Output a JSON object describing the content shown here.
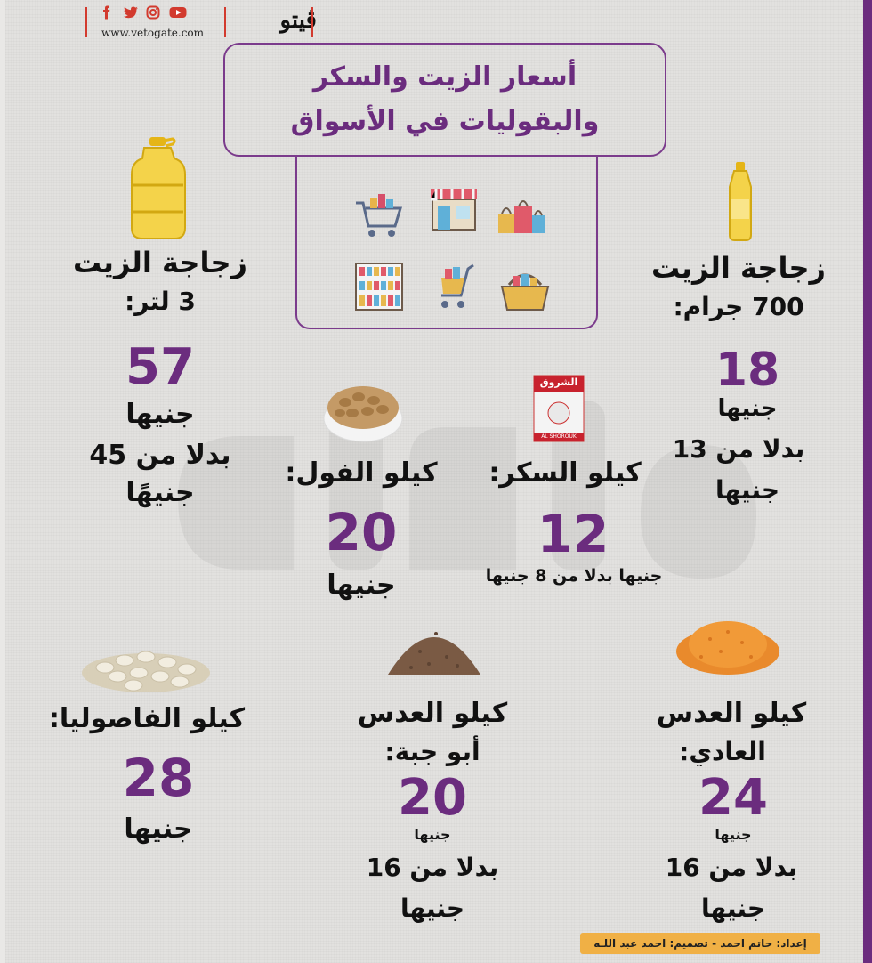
{
  "header": {
    "logo_text": "ڤيتو",
    "url": "www.vetogate.com",
    "social_icons": [
      "facebook-icon",
      "twitter-icon",
      "instagram-icon",
      "youtube-icon"
    ]
  },
  "title": {
    "line1": "أسعار الزيت والسكر",
    "line2": "والبقوليات في الأسواق"
  },
  "items": {
    "oil_small": {
      "label1": "زجاجة الزيت",
      "label2": "700 جرام:",
      "price": "18",
      "unit": "جنيها",
      "was1": "بدلا من 13",
      "was2": "جنيها"
    },
    "oil_large": {
      "label1": "زجاجة الزيت",
      "label2": "3 لتر:",
      "price": "57",
      "unit": "جنيها",
      "was1": "بدلا من 45",
      "was2": "جنيهًا"
    },
    "sugar": {
      "label": "كيلو السكر:",
      "price": "12",
      "note": "جنيها  بدلا من 8 جنيها",
      "package_text": "الشروق",
      "package_sub": "AL SHOROUK"
    },
    "beans": {
      "label": "كيلو الفول:",
      "price": "20",
      "unit": "جنيها"
    },
    "white_beans": {
      "label": "كيلو الفاصوليا:",
      "price": "28",
      "unit": "جنيها"
    },
    "brown_lentils": {
      "label1": "كيلو العدس",
      "label2": "أبو جبة:",
      "price": "20",
      "unit": "جنيها",
      "was1": "بدلا من 16",
      "was2": "جنيها"
    },
    "red_lentils": {
      "label1": "كيلو العدس",
      "label2": "العادي:",
      "price": "24",
      "unit": "جنيها",
      "was1": "بدلا من 16",
      "was2": "جنيها"
    }
  },
  "credit": "إعداد: حاتم احمد - تصميم: احمد عبد اللـه",
  "colors": {
    "accent": "#6b2c7e",
    "text": "#111111",
    "credit_bg": "#f0b045",
    "background": "#e2e1df"
  }
}
